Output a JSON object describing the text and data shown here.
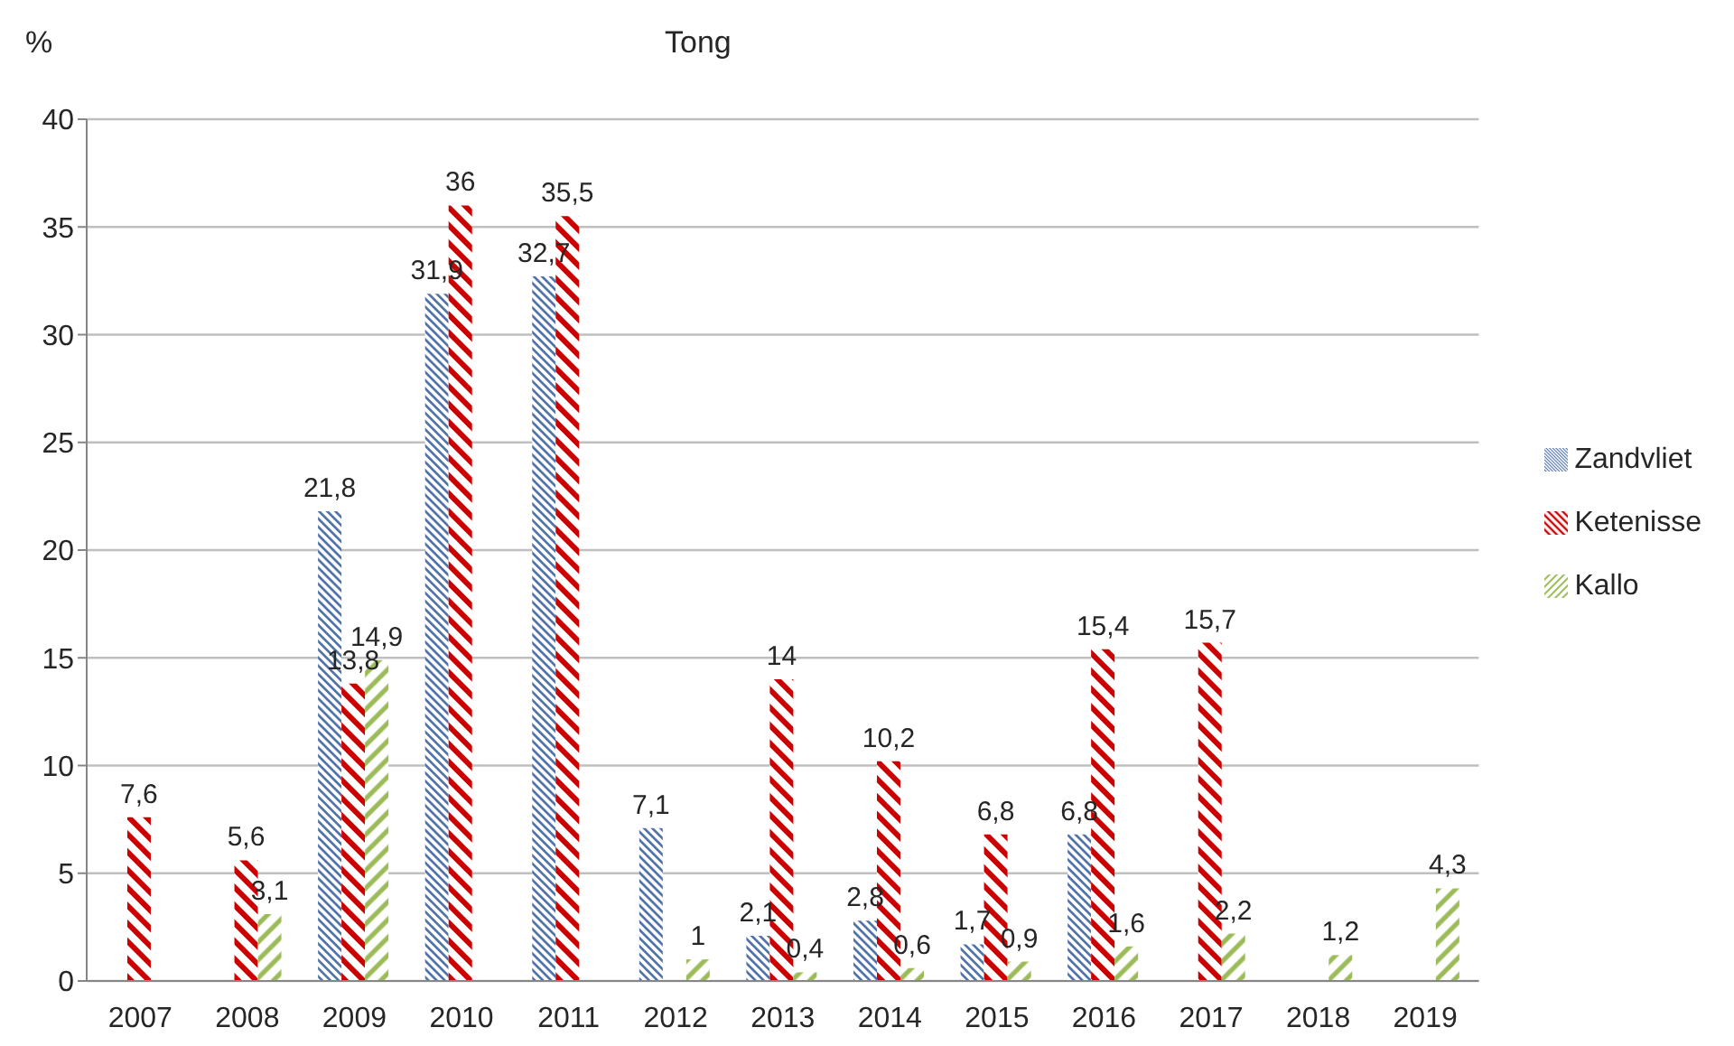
{
  "chart_data": {
    "type": "bar",
    "title": "Tong",
    "ylabel": "%",
    "categories": [
      "2007",
      "2008",
      "2009",
      "2010",
      "2011",
      "2012",
      "2013",
      "2014",
      "2015",
      "2016",
      "2017",
      "2018",
      "2019"
    ],
    "series": [
      {
        "name": "Zandvliet",
        "color": "#4a6ea8",
        "values": [
          null,
          null,
          21.8,
          31.9,
          32.7,
          7.1,
          2.1,
          2.8,
          1.7,
          6.8,
          null,
          null,
          null
        ],
        "value_labels": [
          null,
          null,
          "21,8",
          "31,9",
          "32,7",
          "7,1",
          "2,1",
          "2,8",
          "1,7",
          "6,8",
          null,
          null,
          null
        ]
      },
      {
        "name": "Ketenisse",
        "color": "#cc0000",
        "values": [
          7.6,
          5.6,
          13.8,
          36,
          35.5,
          null,
          14,
          10.2,
          6.8,
          15.4,
          15.7,
          null,
          null
        ],
        "value_labels": [
          "7,6",
          "5,6",
          "13,8",
          "36",
          "35,5",
          null,
          "14",
          "10,2",
          "6,8",
          "15,4",
          "15,7",
          null,
          null
        ]
      },
      {
        "name": "Kallo",
        "color": "#9bbb59",
        "values": [
          null,
          3.1,
          14.9,
          null,
          null,
          1,
          0.4,
          0.6,
          0.9,
          1.6,
          2.2,
          1.2,
          4.3
        ],
        "value_labels": [
          null,
          "3,1",
          "14,9",
          null,
          null,
          "1",
          "0,4",
          "0,6",
          "0,9",
          "1,6",
          "2,2",
          "1,2",
          "4,3"
        ]
      }
    ],
    "ylim": [
      0,
      40
    ],
    "yticks": [
      0,
      5,
      10,
      15,
      20,
      25,
      30,
      35,
      40
    ],
    "grid": "y",
    "legend": "right"
  }
}
